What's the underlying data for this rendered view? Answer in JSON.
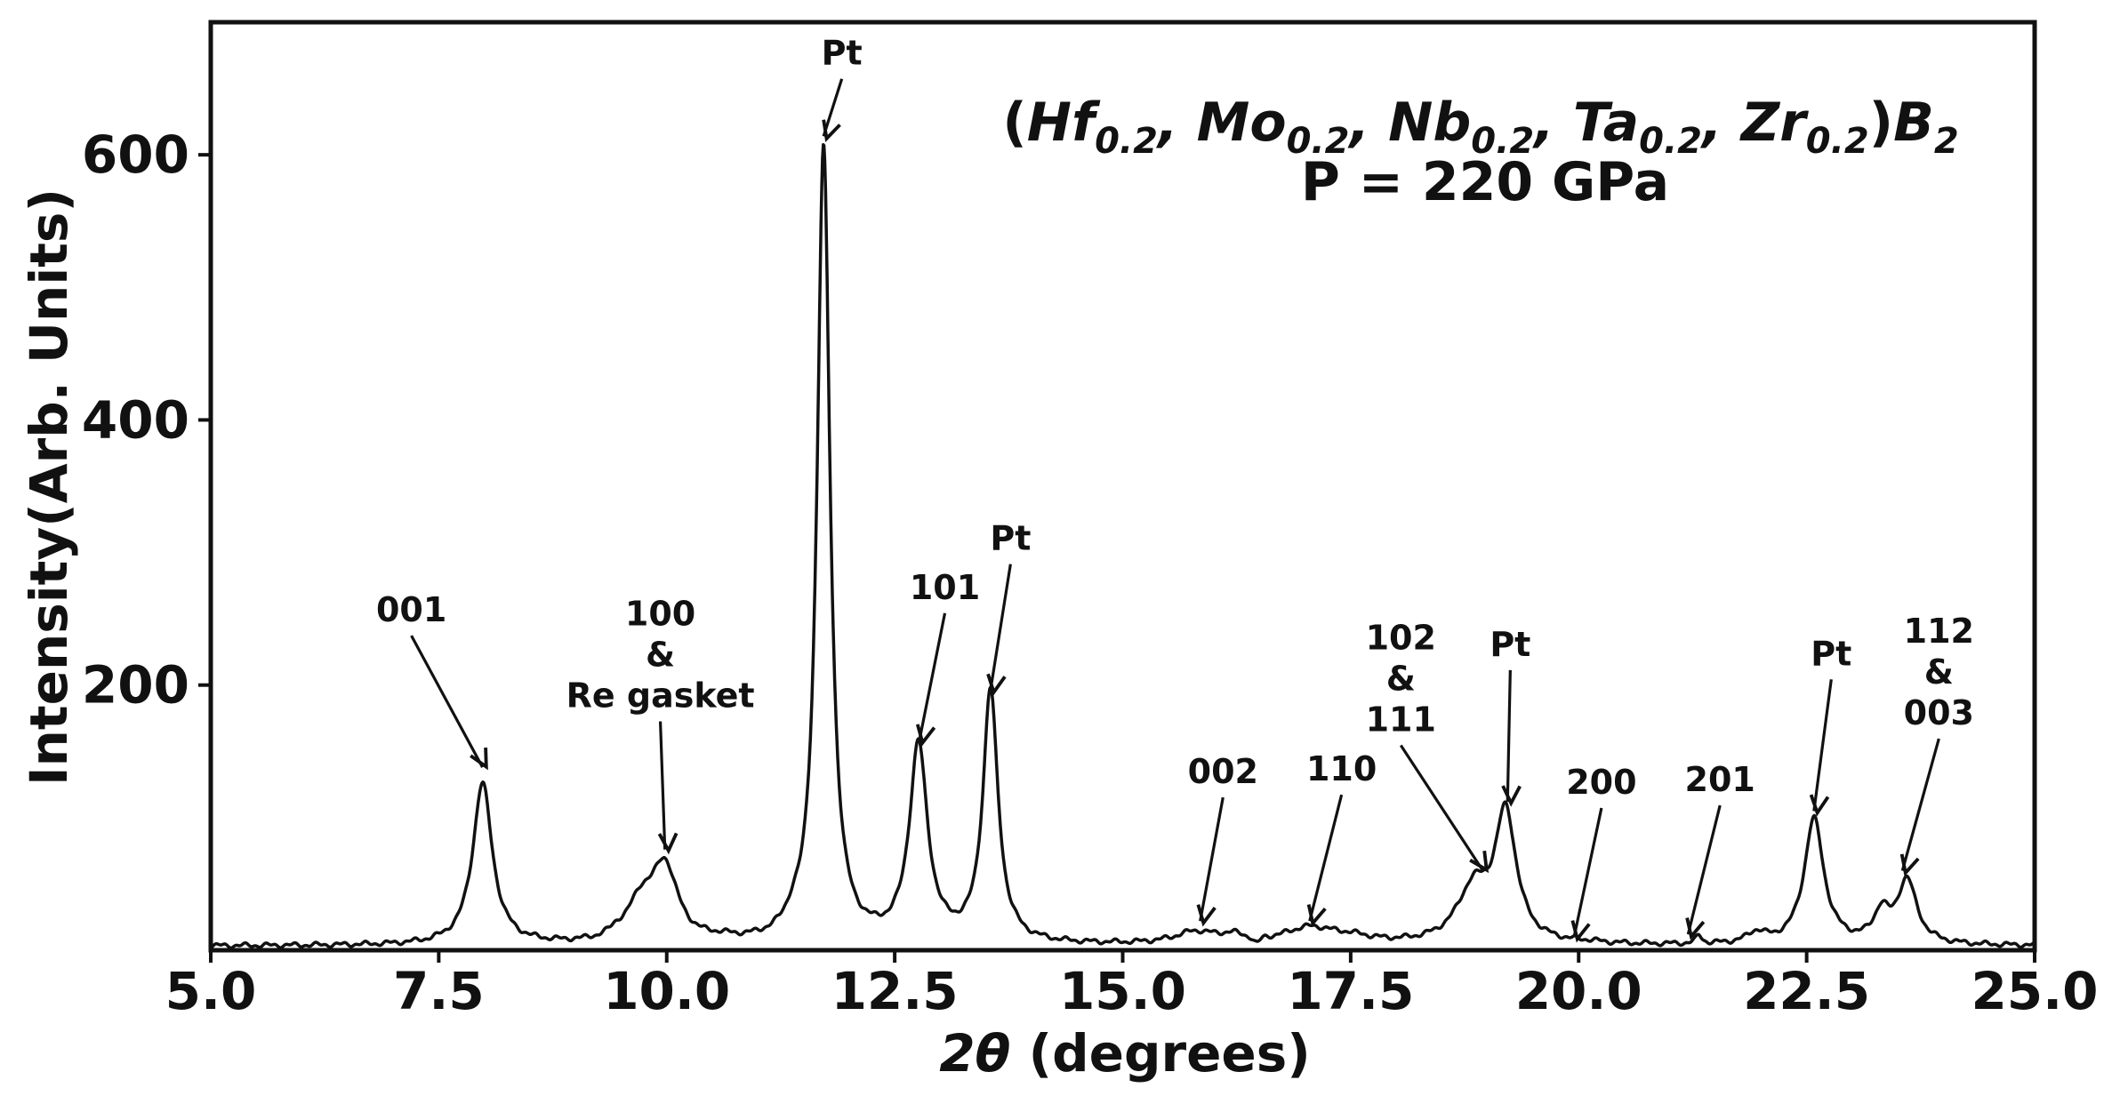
{
  "chart_data": {
    "type": "line",
    "title_formula": {
      "open": "(",
      "parts": [
        {
          "sym": "Hf",
          "sub": "0.2"
        },
        {
          "sym": "Mo",
          "sub": "0.2"
        },
        {
          "sym": "Nb",
          "sub": "0.2"
        },
        {
          "sym": "Ta",
          "sub": "0.2"
        },
        {
          "sym": "Zr",
          "sub": "0.2"
        }
      ],
      "separator": ",",
      "close": ")",
      "tail": {
        "sym": "B",
        "sub": "2"
      }
    },
    "subtitle": "P = 220 GPa",
    "xlabel_symbol": "2θ",
    "xlabel_text": "(degrees)",
    "ylabel": "Intensity(Arb. Units)",
    "xlim": [
      5.0,
      25.0
    ],
    "ylim": [
      0,
      700
    ],
    "x_ticks": [
      "5.0",
      "7.5",
      "10.0",
      "12.5",
      "15.0",
      "17.5",
      "20.0",
      "22.5",
      "25.0"
    ],
    "y_ticks": [
      "200",
      "400",
      "600"
    ],
    "grid": false,
    "series": [
      {
        "color": "#111111",
        "baseline": 3,
        "peaks": [
          {
            "x": 7.98,
            "h": 122,
            "w": 0.13
          },
          {
            "x": 9.45,
            "h": 4,
            "w": 0.08
          },
          {
            "x": 9.72,
            "h": 28,
            "w": 0.18
          },
          {
            "x": 9.98,
            "h": 55,
            "w": 0.17
          },
          {
            "x": 10.6,
            "h": 2,
            "w": 0.2
          },
          {
            "x": 11.38,
            "h": 8,
            "w": 0.1
          },
          {
            "x": 11.72,
            "h": 600,
            "w": 0.085
          },
          {
            "x": 12.76,
            "h": 148,
            "w": 0.12
          },
          {
            "x": 13.55,
            "h": 190,
            "w": 0.1
          },
          {
            "x": 15.8,
            "h": 9,
            "w": 0.28
          },
          {
            "x": 16.2,
            "h": 5,
            "w": 0.15
          },
          {
            "x": 17.05,
            "h": 12,
            "w": 0.35
          },
          {
            "x": 17.5,
            "h": 4,
            "w": 0.3
          },
          {
            "x": 18.85,
            "h": 40,
            "w": 0.22
          },
          {
            "x": 19.2,
            "h": 95,
            "w": 0.14
          },
          {
            "x": 20.1,
            "h": 1,
            "w": 0.2
          },
          {
            "x": 21.32,
            "h": 6,
            "w": 0.04
          },
          {
            "x": 21.95,
            "h": 8,
            "w": 0.12
          },
          {
            "x": 22.58,
            "h": 95,
            "w": 0.13
          },
          {
            "x": 23.32,
            "h": 22,
            "w": 0.1
          },
          {
            "x": 23.6,
            "h": 48,
            "w": 0.13
          }
        ]
      }
    ],
    "annotations": [
      {
        "lines": [
          "001"
        ],
        "tip": [
          7.98,
          138
        ],
        "text_x": 7.2,
        "text_top": 248
      },
      {
        "lines": [
          "100",
          "&",
          "Re gasket"
        ],
        "tip": [
          9.98,
          76
        ],
        "text_x": 9.93,
        "text_top": 245
      },
      {
        "lines": [
          "Pt"
        ],
        "tip": [
          11.72,
          614
        ],
        "text_x": 11.92,
        "text_top": 668
      },
      {
        "lines": [
          "101"
        ],
        "tip": [
          12.77,
          158
        ],
        "text_x": 13.05,
        "text_top": 265
      },
      {
        "lines": [
          "Pt"
        ],
        "tip": [
          13.55,
          196
        ],
        "text_x": 13.77,
        "text_top": 302
      },
      {
        "lines": [
          "002"
        ],
        "tip": [
          15.85,
          22
        ],
        "text_x": 16.1,
        "text_top": 126
      },
      {
        "lines": [
          "110"
        ],
        "tip": [
          17.05,
          22
        ],
        "text_x": 17.4,
        "text_top": 128
      },
      {
        "lines": [
          "102",
          "&",
          "111"
        ],
        "tip": [
          18.95,
          60
        ],
        "text_x": 18.05,
        "text_top": 227
      },
      {
        "lines": [
          "Pt"
        ],
        "tip": [
          19.22,
          112
        ],
        "text_x": 19.25,
        "text_top": 222
      },
      {
        "lines": [
          "200"
        ],
        "tip": [
          19.95,
          10
        ],
        "text_x": 20.25,
        "text_top": 118
      },
      {
        "lines": [
          "201"
        ],
        "tip": [
          21.2,
          12
        ],
        "text_x": 21.55,
        "text_top": 120
      },
      {
        "lines": [
          "Pt"
        ],
        "tip": [
          22.58,
          105
        ],
        "text_x": 22.77,
        "text_top": 215
      },
      {
        "lines": [
          "112",
          "&",
          "003"
        ],
        "tip": [
          23.55,
          60
        ],
        "text_x": 23.95,
        "text_top": 232
      }
    ]
  }
}
